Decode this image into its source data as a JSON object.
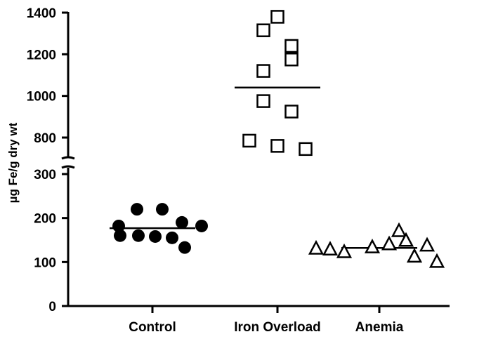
{
  "chart_data": {
    "type": "scatter",
    "subtype": "column dot plot with mean lines and broken y-axis",
    "ylabel": "µg Fe/g dry wt",
    "y_axis": {
      "segments": [
        {
          "range": [
            0,
            300
          ],
          "ticks": [
            0,
            100,
            200,
            300
          ]
        },
        {
          "range": [
            700,
            1400
          ],
          "ticks": [
            800,
            1000,
            1200,
            1400
          ]
        }
      ],
      "break_between": [
        300,
        700
      ]
    },
    "categories": [
      "Control",
      "Iron Overload",
      "Anemia"
    ],
    "series": [
      {
        "category": "Control",
        "marker": "filled-circle",
        "values": [
          220,
          220,
          182,
          182,
          190,
          160,
          160,
          158,
          155,
          133
        ],
        "mean": 177
      },
      {
        "category": "Iron Overload",
        "marker": "open-square",
        "values": [
          1380,
          1315,
          1240,
          1175,
          1120,
          975,
          925,
          785,
          760,
          745
        ],
        "mean": 1040
      },
      {
        "category": "Anemia",
        "marker": "open-triangle",
        "values": [
          130,
          128,
          122,
          170,
          148,
          140,
          133,
          137,
          112,
          100
        ],
        "mean": 132
      }
    ],
    "grid": false,
    "legend": "none"
  }
}
